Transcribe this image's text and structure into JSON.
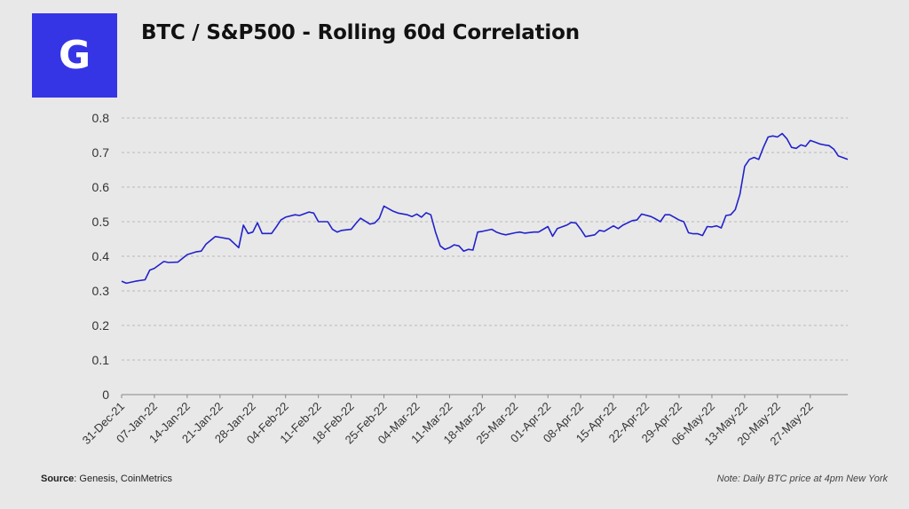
{
  "logo": {
    "letter": "G",
    "color": "#3535e6"
  },
  "footer": {
    "source_label": "Source",
    "source_text": ": Genesis, CoinMetrics",
    "note": "Note: Daily BTC price at 4pm New York"
  },
  "chart_data": {
    "type": "line",
    "title": "BTC / S&P500 - Rolling 60d Correlation",
    "xlabel": "",
    "ylabel": "",
    "ylim": [
      0,
      0.8
    ],
    "yticks": [
      "0",
      "0.1",
      "0.2",
      "0.3",
      "0.4",
      "0.5",
      "0.6",
      "0.7",
      "0.8"
    ],
    "grid": "horizontal dashed",
    "legend": "none",
    "line_color": "#2222cc",
    "x_tick_labels": [
      "31-Dec-21",
      "07-Jan-22",
      "14-Jan-22",
      "21-Jan-22",
      "28-Jan-22",
      "04-Feb-22",
      "11-Feb-22",
      "18-Feb-22",
      "25-Feb-22",
      "04-Mar-22",
      "11-Mar-22",
      "18-Mar-22",
      "25-Mar-22",
      "01-Apr-22",
      "08-Apr-22",
      "15-Apr-22",
      "22-Apr-22",
      "29-Apr-22",
      "06-May-22",
      "13-May-22",
      "20-May-22",
      "27-May-22"
    ],
    "x_days_range": [
      0,
      155
    ],
    "series": [
      {
        "x": [
          0,
          1,
          3,
          5,
          6,
          7,
          9,
          10,
          12,
          14,
          16,
          17,
          18,
          20,
          21,
          23,
          25,
          26,
          27,
          28,
          29,
          30,
          32,
          33,
          34,
          35,
          37,
          38,
          40,
          41,
          42,
          44,
          45,
          46,
          47,
          49,
          50,
          51,
          53,
          54,
          55,
          56,
          58,
          59,
          61,
          62,
          63,
          64,
          65,
          66,
          67,
          68,
          69,
          70,
          71,
          72,
          73,
          74,
          75,
          76,
          77,
          79,
          80,
          81,
          82,
          84,
          85,
          86,
          88,
          89,
          91,
          92,
          93,
          95,
          96,
          97,
          98,
          99,
          101,
          102,
          103,
          105,
          106,
          107,
          109,
          110,
          111,
          113,
          114,
          115,
          116,
          117,
          119,
          120,
          121,
          122,
          123,
          124,
          125,
          126,
          127,
          128,
          129,
          130,
          131,
          132,
          133,
          134,
          135,
          136,
          137,
          138,
          139,
          140,
          141,
          142,
          143,
          144,
          145,
          146,
          147,
          148,
          149,
          150,
          151,
          152,
          153,
          154,
          155
        ],
        "y": [
          0.328,
          0.322,
          0.328,
          0.332,
          0.36,
          0.365,
          0.385,
          0.382,
          0.383,
          0.405,
          0.413,
          0.415,
          0.435,
          0.457,
          0.455,
          0.45,
          0.425,
          0.49,
          0.466,
          0.47,
          0.497,
          0.466,
          0.466,
          0.485,
          0.505,
          0.513,
          0.52,
          0.518,
          0.528,
          0.525,
          0.5,
          0.5,
          0.478,
          0.47,
          0.475,
          0.478,
          0.495,
          0.51,
          0.493,
          0.496,
          0.51,
          0.545,
          0.53,
          0.525,
          0.52,
          0.515,
          0.522,
          0.513,
          0.526,
          0.52,
          0.47,
          0.43,
          0.42,
          0.425,
          0.433,
          0.43,
          0.415,
          0.42,
          0.418,
          0.47,
          0.472,
          0.478,
          0.47,
          0.465,
          0.462,
          0.468,
          0.47,
          0.467,
          0.47,
          0.47,
          0.486,
          0.458,
          0.48,
          0.49,
          0.498,
          0.496,
          0.478,
          0.457,
          0.462,
          0.475,
          0.472,
          0.488,
          0.48,
          0.49,
          0.503,
          0.505,
          0.522,
          0.515,
          0.508,
          0.5,
          0.52,
          0.52,
          0.505,
          0.5,
          0.468,
          0.465,
          0.465,
          0.46,
          0.486,
          0.485,
          0.488,
          0.482,
          0.518,
          0.52,
          0.535,
          0.58,
          0.66,
          0.68,
          0.686,
          0.68,
          0.715,
          0.745,
          0.748,
          0.745,
          0.755,
          0.74,
          0.715,
          0.712,
          0.722,
          0.718,
          0.735,
          0.73,
          0.725,
          0.722,
          0.72,
          0.71,
          0.69,
          0.685,
          0.68
        ]
      }
    ]
  }
}
